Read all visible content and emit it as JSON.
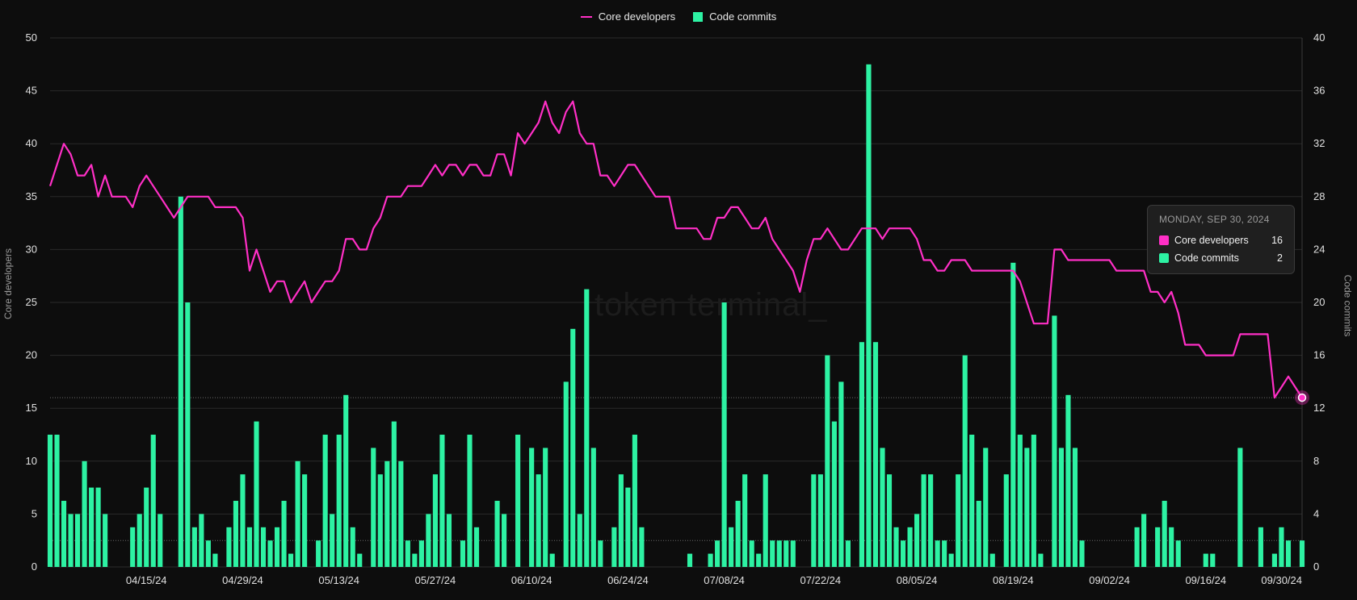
{
  "legend": {
    "line_label": "Core developers",
    "bar_label": "Code commits"
  },
  "watermark": "token terminal_",
  "tooltip": {
    "date": "MONDAY, SEP 30, 2024",
    "rows": [
      {
        "label": "Core developers",
        "value": "16"
      },
      {
        "label": "Code commits",
        "value": "2"
      }
    ]
  },
  "colors": {
    "line": "#ff2fc6",
    "bars": "#2df2a3",
    "background": "#0d0d0d",
    "grid": "#2a2a2a"
  },
  "chart_data": {
    "type": "bar+line",
    "title": "",
    "xlabel": "",
    "ylabel_left": "Core developers",
    "ylabel_right": "Code commits",
    "ylim_left": [
      0,
      50
    ],
    "ylim_right": [
      0,
      40
    ],
    "yticks_left": [
      0,
      5,
      10,
      15,
      20,
      25,
      30,
      35,
      40,
      45,
      50
    ],
    "yticks_right": [
      0,
      4,
      8,
      12,
      16,
      20,
      24,
      28,
      32,
      36,
      40
    ],
    "x_start": "2024-04-01",
    "x_end": "2024-09-30",
    "x_tick_labels": [
      "04/15/24",
      "04/29/24",
      "05/13/24",
      "05/27/24",
      "06/10/24",
      "06/24/24",
      "07/08/24",
      "07/22/24",
      "08/05/24",
      "08/19/24",
      "09/02/24",
      "09/16/24",
      "09/30/24"
    ],
    "grid": true,
    "legend_position": "top-center",
    "series": [
      {
        "name": "Core developers",
        "type": "line",
        "axis": "left",
        "values": [
          36,
          38,
          40,
          39,
          37,
          37,
          38,
          35,
          37,
          35,
          35,
          35,
          34,
          36,
          37,
          36,
          35,
          34,
          33,
          34,
          35,
          35,
          35,
          35,
          34,
          34,
          34,
          34,
          33,
          28,
          30,
          28,
          26,
          27,
          27,
          25,
          26,
          27,
          25,
          26,
          27,
          27,
          28,
          31,
          31,
          30,
          30,
          32,
          33,
          35,
          35,
          35,
          36,
          36,
          36,
          37,
          38,
          37,
          38,
          38,
          37,
          38,
          38,
          37,
          37,
          39,
          39,
          37,
          41,
          40,
          41,
          42,
          44,
          42,
          41,
          43,
          44,
          41,
          40,
          40,
          37,
          37,
          36,
          37,
          38,
          38,
          37,
          36,
          35,
          35,
          35,
          32,
          32,
          32,
          32,
          31,
          31,
          33,
          33,
          34,
          34,
          33,
          32,
          32,
          33,
          31,
          30,
          29,
          28,
          26,
          29,
          31,
          31,
          32,
          31,
          30,
          30,
          31,
          32,
          32,
          32,
          31,
          32,
          32,
          32,
          32,
          31,
          29,
          29,
          28,
          28,
          29,
          29,
          29,
          28,
          28,
          28,
          28,
          28,
          28,
          28,
          27,
          25,
          23,
          23,
          23,
          30,
          30,
          29,
          29,
          29,
          29,
          29,
          29,
          29,
          28,
          28,
          28,
          28,
          28,
          26,
          26,
          25,
          26,
          24,
          21,
          21,
          21,
          20,
          20,
          20,
          20,
          20,
          22,
          22,
          22,
          22,
          22,
          16,
          17,
          18,
          17,
          16
        ]
      },
      {
        "name": "Code commits",
        "type": "bar",
        "axis": "right",
        "values": [
          10,
          10,
          5,
          4,
          4,
          8,
          6,
          6,
          4,
          0,
          0,
          0,
          3,
          4,
          6,
          10,
          4,
          0,
          0,
          28,
          20,
          3,
          4,
          2,
          1,
          0,
          3,
          5,
          7,
          3,
          11,
          3,
          2,
          3,
          5,
          1,
          8,
          7,
          0,
          2,
          10,
          4,
          10,
          13,
          3,
          1,
          0,
          9,
          7,
          8,
          11,
          8,
          2,
          1,
          2,
          4,
          7,
          10,
          4,
          0,
          2,
          10,
          3,
          0,
          0,
          5,
          4,
          0,
          10,
          0,
          9,
          7,
          9,
          1,
          0,
          14,
          18,
          4,
          21,
          9,
          2,
          0,
          3,
          7,
          6,
          10,
          3,
          0,
          0,
          0,
          0,
          0,
          0,
          1,
          0,
          0,
          1,
          2,
          20,
          3,
          5,
          7,
          2,
          1,
          7,
          2,
          2,
          2,
          2,
          0,
          0,
          7,
          7,
          16,
          11,
          14,
          2,
          0,
          17,
          38,
          17,
          9,
          7,
          3,
          2,
          3,
          4,
          7,
          7,
          2,
          2,
          1,
          7,
          16,
          10,
          5,
          9,
          1,
          0,
          7,
          23,
          10,
          9,
          10,
          1,
          0,
          19,
          9,
          13,
          9,
          2,
          0,
          0,
          0,
          0,
          0,
          0,
          0,
          3,
          4,
          0,
          3,
          5,
          3,
          2,
          0,
          0,
          0,
          1,
          1,
          0,
          0,
          0,
          9,
          0,
          0,
          3,
          0,
          1,
          3,
          2,
          0,
          2
        ]
      }
    ]
  }
}
